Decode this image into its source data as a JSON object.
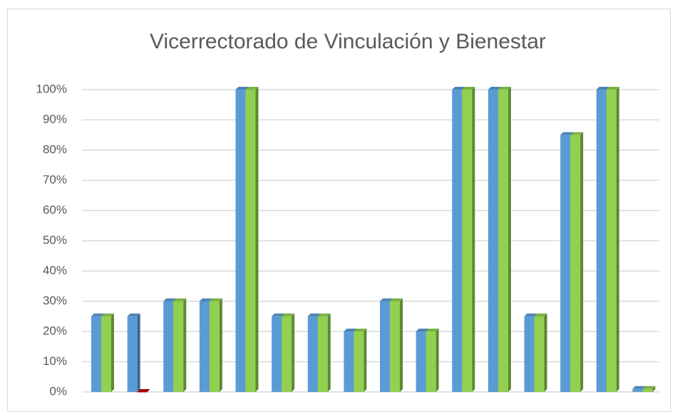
{
  "chart_data": {
    "type": "bar3d",
    "title": "Vicerrectorado de Vinculación y Bienestar",
    "categories": [
      null,
      null,
      null,
      null,
      null,
      null,
      null,
      null,
      null,
      null,
      null,
      null,
      null,
      null,
      null,
      null
    ],
    "series": [
      {
        "color": "#5b9bd5",
        "values": [
          25,
          25,
          30,
          30,
          100,
          25,
          25,
          20,
          30,
          20,
          100,
          100,
          25,
          85,
          100,
          1
        ]
      },
      {
        "color": "#92d050",
        "colors": [
          "#92d050",
          "#c00000",
          "#92d050",
          "#92d050",
          "#92d050",
          "#92d050",
          "#92d050",
          "#92d050",
          "#92d050",
          "#92d050",
          "#92d050",
          "#92d050",
          "#92d050",
          "#92d050",
          "#92d050",
          "#92d050"
        ],
        "values": [
          25,
          0,
          30,
          30,
          100,
          25,
          25,
          20,
          30,
          20,
          100,
          100,
          25,
          85,
          100,
          1
        ]
      }
    ],
    "ylim": [
      0,
      100
    ],
    "yticks": [
      {
        "value": 0,
        "label": "0%"
      },
      {
        "value": 10,
        "label": "10%"
      },
      {
        "value": 20,
        "label": "20%"
      },
      {
        "value": 30,
        "label": "30%"
      },
      {
        "value": 40,
        "label": "40%"
      },
      {
        "value": 50,
        "label": "50%"
      },
      {
        "value": 60,
        "label": "60%"
      },
      {
        "value": 70,
        "label": "70%"
      },
      {
        "value": 80,
        "label": "80%"
      },
      {
        "value": 90,
        "label": "90%"
      },
      {
        "value": 100,
        "label": "100%"
      }
    ],
    "grid": true
  }
}
